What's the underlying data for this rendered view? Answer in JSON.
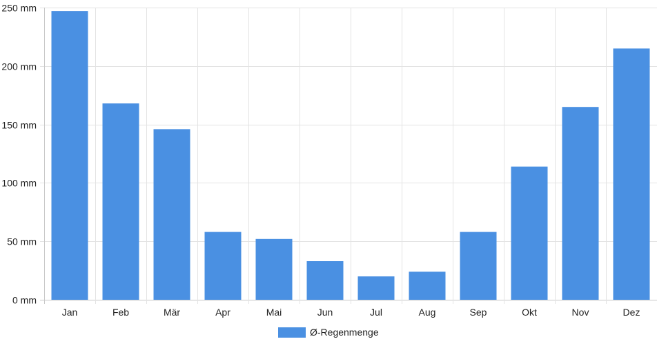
{
  "chart_data": {
    "type": "bar",
    "categories": [
      "Jan",
      "Feb",
      "Mär",
      "Apr",
      "Mai",
      "Jun",
      "Jul",
      "Aug",
      "Sep",
      "Okt",
      "Nov",
      "Dez"
    ],
    "series": [
      {
        "name": "Ø-Regenmenge",
        "values": [
          247,
          168,
          146,
          58,
          52,
          33,
          20,
          24,
          58,
          114,
          165,
          215
        ],
        "color": "#4a90e2"
      }
    ],
    "unit": "mm",
    "yticks": [
      "0 mm",
      "50 mm",
      "100 mm",
      "150 mm",
      "200 mm",
      "250 mm"
    ],
    "ylim": [
      0,
      250
    ],
    "grid": true,
    "legend_position": "bottom"
  }
}
